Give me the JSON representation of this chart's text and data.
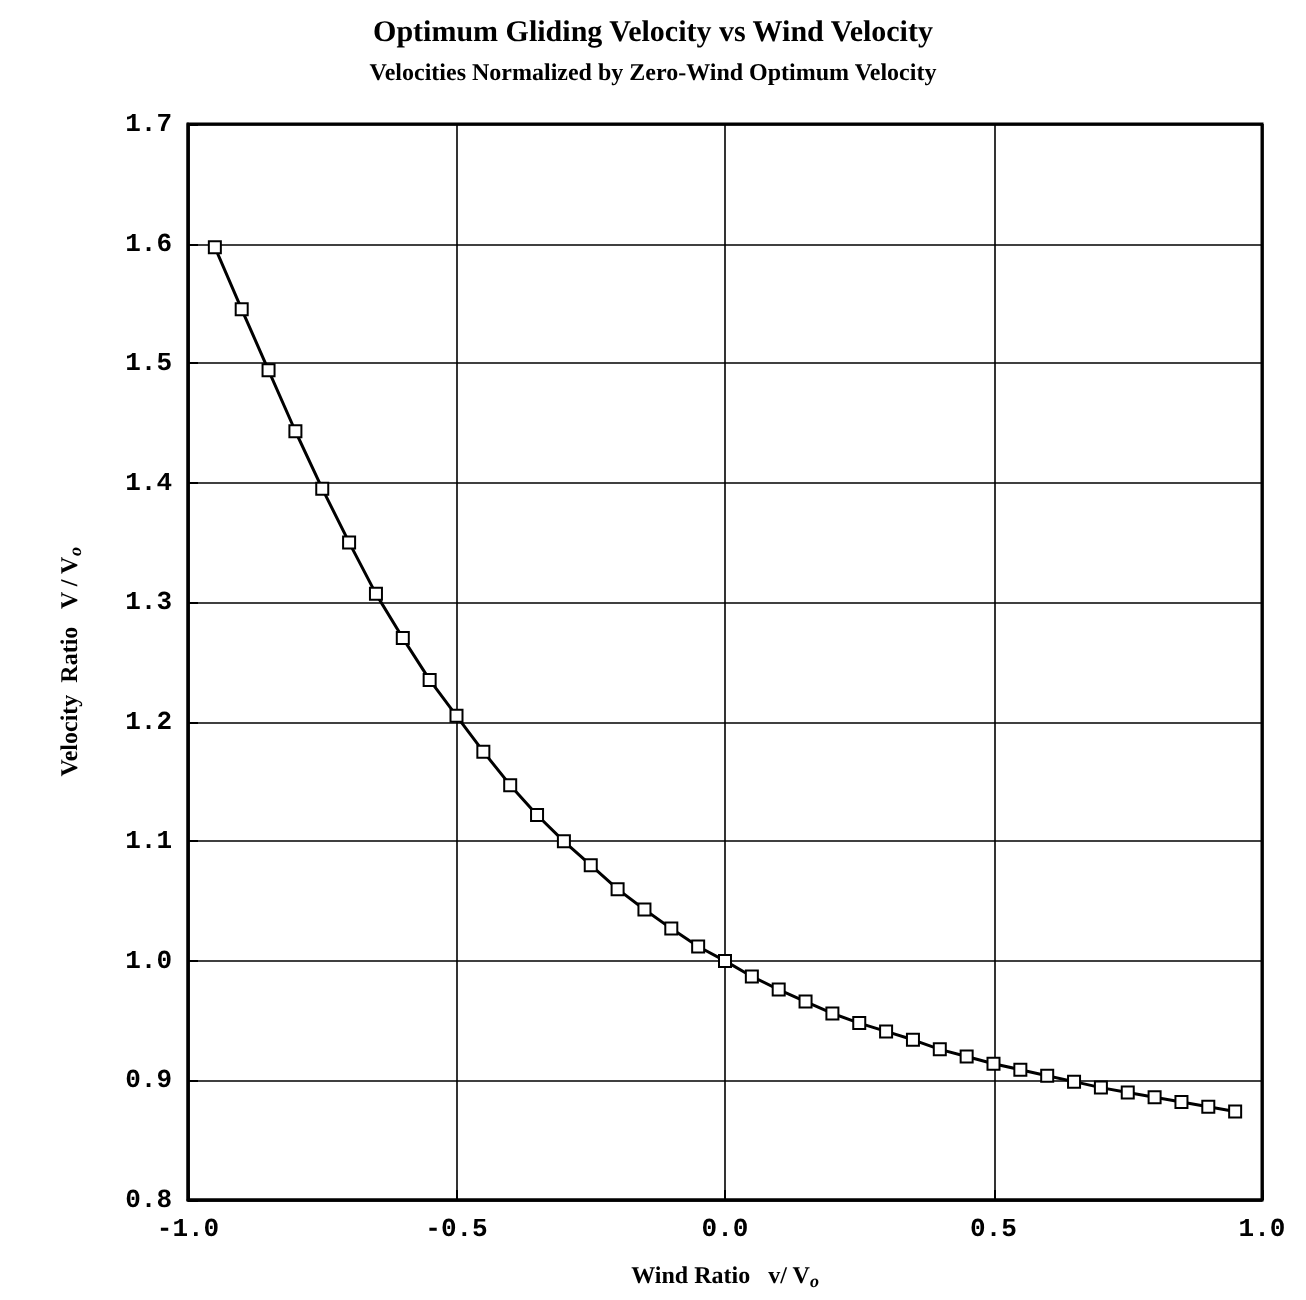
{
  "chart_data": {
    "type": "line",
    "title": "Optimum Gliding Velocity vs Wind Velocity",
    "subtitle": "Velocities Normalized by Zero-Wind Optimum Velocity",
    "xlabel": "Wind Ratio   v/ V$_{o}$",
    "ylabel": "Velocity  Ratio   V / V$_{o}$",
    "x": [
      -0.95,
      -0.9,
      -0.85,
      -0.8,
      -0.75,
      -0.7,
      -0.65,
      -0.6,
      -0.55,
      -0.5,
      -0.45,
      -0.4,
      -0.35,
      -0.3,
      -0.25,
      -0.2,
      -0.15,
      -0.1,
      -0.05,
      0,
      0.05,
      0.1,
      0.15,
      0.2,
      0.25,
      0.3,
      0.35,
      0.4,
      0.45,
      0.5,
      0.55,
      0.6,
      0.65,
      0.7,
      0.75,
      0.8,
      0.85,
      0.9,
      0.95
    ],
    "series": [
      {
        "color": "#000000",
        "values": [
          1.597,
          1.545,
          1.494,
          1.443,
          1.395,
          1.35,
          1.307,
          1.27,
          1.235,
          1.205,
          1.175,
          1.147,
          1.122,
          1.1,
          1.08,
          1.06,
          1.043,
          1.027,
          1.012,
          1.0,
          0.987,
          0.976,
          0.966,
          0.956,
          0.948,
          0.941,
          0.934,
          0.926,
          0.92,
          0.914,
          0.909,
          0.904,
          0.899,
          0.894,
          0.89,
          0.886,
          0.882,
          0.878,
          0.874
        ]
      }
    ],
    "xlim": [
      -1,
      1
    ],
    "xticks": [
      {
        "value": -1,
        "label": "-1.0"
      },
      {
        "value": -0.5,
        "label": "-0.5"
      },
      {
        "value": 0,
        "label": "0.0"
      },
      {
        "value": 0.5,
        "label": "0.5"
      },
      {
        "value": 1,
        "label": "1.0"
      }
    ],
    "ylim": [
      0.8,
      1.7
    ],
    "yticks": [
      {
        "value": 0.8,
        "label": "0.8"
      },
      {
        "value": 0.9,
        "label": "0.9"
      },
      {
        "value": 1,
        "label": "1.0"
      },
      {
        "value": 1.1,
        "label": "1.1"
      },
      {
        "value": 1.2,
        "label": "1.2"
      },
      {
        "value": 1.3,
        "label": "1.3"
      },
      {
        "value": 1.4,
        "label": "1.4"
      },
      {
        "value": 1.5,
        "label": "1.5"
      },
      {
        "value": 1.6,
        "label": "1.6"
      },
      {
        "value": 1.7,
        "label": "1.7"
      }
    ],
    "grid": true,
    "marker": "square",
    "line_style": "solid"
  }
}
